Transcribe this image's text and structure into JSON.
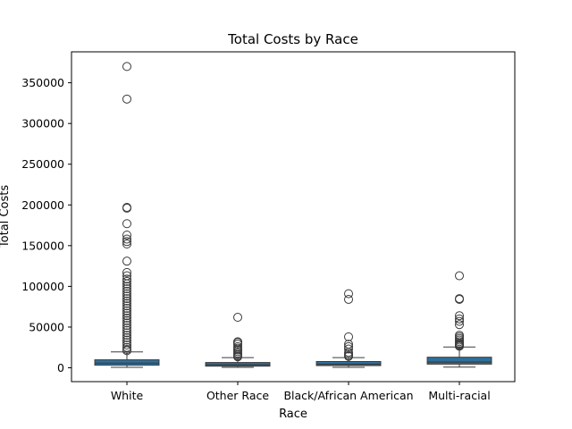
{
  "chart_data": {
    "type": "box",
    "title": "Total Costs by Race",
    "xlabel": "Race",
    "ylabel": "Total Costs",
    "ylim": [
      -17000,
      388000
    ],
    "yticks": [
      0,
      50000,
      100000,
      150000,
      200000,
      250000,
      300000,
      350000
    ],
    "ytick_labels": [
      "0",
      "50000",
      "100000",
      "150000",
      "200000",
      "250000",
      "300000",
      "350000"
    ],
    "categories": [
      "White",
      "Other Race",
      "Black/African American",
      "Multi-racial"
    ],
    "box_color": "#2f6f9a",
    "grid": false,
    "legend": "none",
    "boxes": [
      {
        "category": "White",
        "whisker_low": 500,
        "q1": 3200,
        "median": 5700,
        "q3": 9800,
        "whisker_high": 19500,
        "outliers": [
          370000,
          330000,
          197000,
          196000,
          177000,
          163000,
          158000,
          155000,
          152000,
          131000,
          117000,
          113000,
          109000,
          106000,
          103000,
          100000,
          97000,
          94000,
          91000,
          88000,
          85000,
          82000,
          79000,
          76000,
          73000,
          70000,
          67000,
          64000,
          61000,
          58000,
          55000,
          52000,
          49000,
          46000,
          43000,
          40000,
          37000,
          34000,
          31000,
          28000,
          25000,
          22500,
          21000
        ]
      },
      {
        "category": "Other Race",
        "whisker_low": 500,
        "q1": 2000,
        "median": 3700,
        "q3": 6500,
        "whisker_high": 12500,
        "outliers": [
          62000,
          32000,
          31000,
          29000,
          26000,
          24000,
          22000,
          20000,
          18000,
          16000,
          14500,
          13500
        ]
      },
      {
        "category": "Black/African American",
        "whisker_low": 500,
        "q1": 2700,
        "median": 4400,
        "q3": 7700,
        "whisker_high": 12500,
        "outliers": [
          91000,
          84000,
          38000,
          29000,
          26000,
          23000,
          19000,
          17000,
          15000,
          14000
        ]
      },
      {
        "category": "Multi-racial",
        "whisker_low": 800,
        "q1": 4500,
        "median": 7000,
        "q3": 13000,
        "whisker_high": 25500,
        "outliers": [
          113000,
          85000,
          84000,
          64000,
          60000,
          57000,
          53000,
          40000,
          38000,
          36000,
          34000,
          32000,
          30000,
          29000,
          28000,
          27000,
          26500
        ]
      }
    ]
  }
}
